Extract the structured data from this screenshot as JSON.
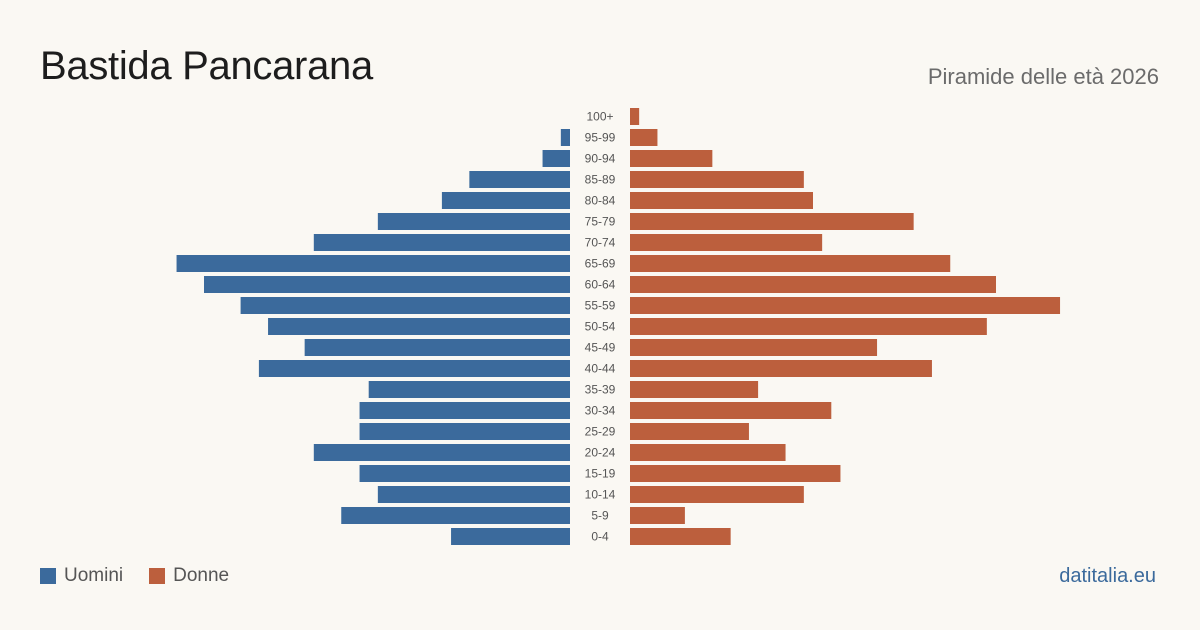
{
  "header": {
    "title": "Bastida Pancarana",
    "subtitle": "Piramide delle età 2026"
  },
  "legend": {
    "men_label": "Uomini",
    "women_label": "Donne"
  },
  "footer": {
    "brand": "datitalia.eu"
  },
  "colors": {
    "men": "#3b6a9c",
    "women": "#bc5f3d",
    "label": "#555555"
  },
  "chart_data": {
    "type": "bar",
    "orientation": "horizontal-pyramid",
    "categories": [
      "100+",
      "95-99",
      "90-94",
      "85-89",
      "80-84",
      "75-79",
      "70-74",
      "65-69",
      "60-64",
      "55-59",
      "50-54",
      "45-49",
      "40-44",
      "35-39",
      "30-34",
      "25-29",
      "20-24",
      "15-19",
      "10-14",
      "5-9",
      "0-4"
    ],
    "series": [
      {
        "name": "Uomini",
        "values": [
          0,
          1,
          3,
          11,
          14,
          21,
          28,
          43,
          40,
          36,
          33,
          29,
          34,
          22,
          23,
          23,
          28,
          23,
          21,
          25,
          13
        ]
      },
      {
        "name": "Donne",
        "values": [
          1,
          3,
          9,
          19,
          20,
          31,
          21,
          35,
          40,
          47,
          39,
          27,
          33,
          14,
          22,
          13,
          17,
          23,
          19,
          6,
          11
        ]
      }
    ]
  }
}
